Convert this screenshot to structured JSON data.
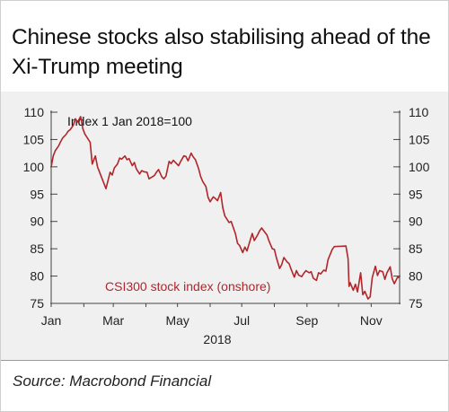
{
  "title": "Chinese stocks also stabilising ahead of the Xi-Trump meeting",
  "source": "Source: Macrobond Financial",
  "chart_data": {
    "type": "line",
    "ylim": [
      75,
      110
    ],
    "y_ticks": [
      110,
      105,
      100,
      95,
      90,
      85,
      80,
      75
    ],
    "x_tick_labels": [
      "Jan",
      "Mar",
      "May",
      "Jul",
      "Sep",
      "Nov"
    ],
    "x_year_label": "2018",
    "index_note": "Index 1 Jan 2018=100",
    "colors": {
      "series": "#b0262b",
      "axis": "#444444",
      "grid": "#bbbbbb"
    },
    "series": [
      {
        "name": "CSI300 stock index (onshore)",
        "x": [
          "2018-01-01",
          "2018-01-03",
          "2018-01-05",
          "2018-01-08",
          "2018-01-10",
          "2018-01-12",
          "2018-01-15",
          "2018-01-17",
          "2018-01-19",
          "2018-01-22",
          "2018-01-24",
          "2018-01-26",
          "2018-01-29",
          "2018-01-31",
          "2018-02-02",
          "2018-02-05",
          "2018-02-07",
          "2018-02-09",
          "2018-02-12",
          "2018-02-14",
          "2018-02-22",
          "2018-02-26",
          "2018-02-28",
          "2018-03-02",
          "2018-03-05",
          "2018-03-07",
          "2018-03-09",
          "2018-03-12",
          "2018-03-14",
          "2018-03-16",
          "2018-03-19",
          "2018-03-21",
          "2018-03-23",
          "2018-03-26",
          "2018-03-28",
          "2018-03-30",
          "2018-04-02",
          "2018-04-04",
          "2018-04-09",
          "2018-04-11",
          "2018-04-13",
          "2018-04-16",
          "2018-04-18",
          "2018-04-20",
          "2018-04-23",
          "2018-04-25",
          "2018-04-27",
          "2018-05-02",
          "2018-05-04",
          "2018-05-07",
          "2018-05-09",
          "2018-05-11",
          "2018-05-14",
          "2018-05-16",
          "2018-05-18",
          "2018-05-21",
          "2018-05-23",
          "2018-05-25",
          "2018-05-28",
          "2018-05-30",
          "2018-06-01",
          "2018-06-04",
          "2018-06-06",
          "2018-06-08",
          "2018-06-11",
          "2018-06-13",
          "2018-06-15",
          "2018-06-19",
          "2018-06-21",
          "2018-06-25",
          "2018-06-27",
          "2018-06-29",
          "2018-07-02",
          "2018-07-04",
          "2018-07-06",
          "2018-07-09",
          "2018-07-11",
          "2018-07-13",
          "2018-07-16",
          "2018-07-18",
          "2018-07-20",
          "2018-07-23",
          "2018-07-25",
          "2018-07-27",
          "2018-07-30",
          "2018-08-01",
          "2018-08-03",
          "2018-08-06",
          "2018-08-08",
          "2018-08-10",
          "2018-08-13",
          "2018-08-15",
          "2018-08-17",
          "2018-08-20",
          "2018-08-22",
          "2018-08-24",
          "2018-08-27",
          "2018-08-29",
          "2018-08-31",
          "2018-09-03",
          "2018-09-05",
          "2018-09-07",
          "2018-09-10",
          "2018-09-12",
          "2018-09-14",
          "2018-09-17",
          "2018-09-19",
          "2018-09-21",
          "2018-09-25",
          "2018-09-27",
          "2018-10-08",
          "2018-10-10",
          "2018-10-11",
          "2018-10-12",
          "2018-10-15",
          "2018-10-17",
          "2018-10-19",
          "2018-10-22",
          "2018-10-24",
          "2018-10-26",
          "2018-10-29",
          "2018-10-31",
          "2018-11-02",
          "2018-11-05",
          "2018-11-07",
          "2018-11-09",
          "2018-11-12",
          "2018-11-14",
          "2018-11-16",
          "2018-11-19",
          "2018-11-21",
          "2018-11-23",
          "2018-11-26",
          "2018-11-28"
        ],
        "values": [
          100.0,
          102.0,
          103.0,
          103.8,
          104.6,
          105.3,
          105.9,
          106.5,
          106.8,
          107.6,
          108.8,
          108.2,
          109.2,
          107.0,
          106.0,
          105.1,
          104.5,
          100.5,
          102.0,
          100.0,
          96.0,
          99.0,
          98.5,
          99.8,
          100.5,
          101.6,
          101.4,
          102.0,
          101.3,
          101.5,
          100.2,
          100.8,
          99.6,
          98.7,
          99.3,
          99.1,
          99.0,
          97.8,
          98.4,
          99.0,
          99.5,
          98.2,
          97.8,
          98.3,
          101.0,
          100.6,
          101.2,
          100.2,
          101.0,
          102.0,
          101.9,
          101.1,
          102.5,
          101.8,
          101.3,
          99.7,
          98.2,
          97.3,
          96.4,
          94.4,
          93.6,
          94.5,
          94.2,
          93.8,
          95.3,
          92.5,
          91.0,
          89.8,
          90.0,
          87.8,
          86.0,
          85.6,
          84.3,
          85.3,
          84.6,
          86.5,
          87.8,
          86.5,
          87.5,
          88.3,
          88.8,
          88.0,
          87.5,
          86.4,
          85.0,
          84.9,
          83.3,
          81.4,
          82.1,
          83.4,
          82.6,
          82.3,
          81.2,
          79.8,
          81.0,
          80.2,
          79.9,
          80.5,
          81.0,
          80.6,
          80.8,
          79.6,
          79.2,
          80.6,
          80.4,
          81.1,
          80.9,
          83.0,
          84.9,
          85.4,
          85.5,
          83.2,
          78.1,
          78.8,
          77.4,
          78.5,
          77.1,
          80.6,
          76.6,
          77.2,
          75.8,
          76.2,
          79.7,
          81.8,
          80.1,
          81.0,
          80.8,
          79.4,
          80.6,
          81.7,
          79.5,
          78.6,
          79.8,
          79.7
        ]
      }
    ]
  }
}
